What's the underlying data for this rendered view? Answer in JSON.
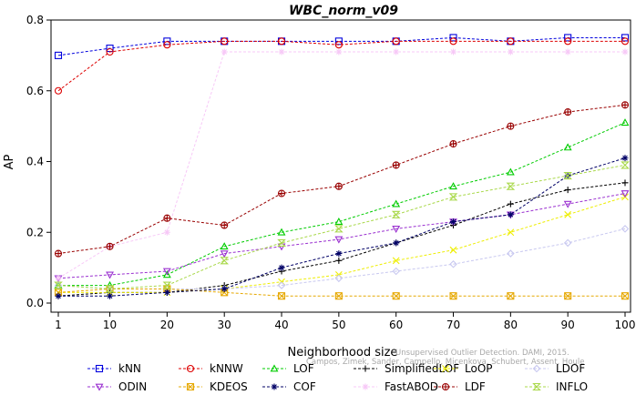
{
  "chart_data": {
    "type": "line",
    "title": "WBC_norm_v09",
    "xlabel": "Neighborhood size",
    "ylabel": "AP",
    "xlim": [
      1,
      100
    ],
    "ylim": [
      0,
      0.8
    ],
    "xticks": [
      1,
      10,
      20,
      30,
      40,
      50,
      60,
      70,
      80,
      90,
      100
    ],
    "yticks": [
      0.0,
      0.2,
      0.4,
      0.6,
      0.8
    ],
    "xtick_labels": [
      "1",
      "10",
      "20",
      "30",
      "40",
      "50",
      "60",
      "70",
      "80",
      "90",
      "100"
    ],
    "ytick_labels": [
      "0.0",
      "0.2",
      "0.4",
      "0.6",
      "0.8"
    ],
    "grid": false,
    "legend_position": "bottom",
    "watermark": "Campos, Zimek, Sander, Campello, Micenkova, Schubert, Assent, Houle",
    "watermark_line1": "Unsupervised Outlier Detection. DAMI, 2015.",
    "x": [
      1,
      10,
      20,
      30,
      40,
      50,
      60,
      70,
      80,
      90,
      100
    ],
    "series": [
      {
        "name": "kNN",
        "color": "#0000dd",
        "marker": "square",
        "values": [
          0.7,
          0.72,
          0.74,
          0.74,
          0.74,
          0.74,
          0.74,
          0.75,
          0.74,
          0.75,
          0.75
        ]
      },
      {
        "name": "kNNW",
        "color": "#dd0000",
        "marker": "circle",
        "values": [
          0.6,
          0.71,
          0.73,
          0.74,
          0.74,
          0.73,
          0.74,
          0.74,
          0.74,
          0.74,
          0.74
        ]
      },
      {
        "name": "LOF",
        "color": "#00cc00",
        "marker": "triangle-up",
        "values": [
          0.05,
          0.05,
          0.08,
          0.16,
          0.2,
          0.23,
          0.28,
          0.33,
          0.37,
          0.44,
          0.51
        ]
      },
      {
        "name": "SimplifiedLOF",
        "color": "#000000",
        "marker": "plus",
        "values": [
          0.02,
          0.03,
          0.03,
          0.05,
          0.09,
          0.12,
          0.17,
          0.22,
          0.28,
          0.32,
          0.34
        ]
      },
      {
        "name": "LoOP",
        "color": "#eeee00",
        "marker": "x",
        "values": [
          0.03,
          0.03,
          0.03,
          0.04,
          0.06,
          0.08,
          0.12,
          0.15,
          0.2,
          0.25,
          0.3
        ]
      },
      {
        "name": "LDOF",
        "color": "#c8c8f0",
        "marker": "diamond",
        "values": [
          0.05,
          0.04,
          0.04,
          0.04,
          0.05,
          0.07,
          0.09,
          0.11,
          0.14,
          0.17,
          0.21
        ]
      },
      {
        "name": "ODIN",
        "color": "#9a30d0",
        "marker": "triangle-down",
        "values": [
          0.07,
          0.08,
          0.09,
          0.14,
          0.16,
          0.18,
          0.21,
          0.23,
          0.25,
          0.28,
          0.31
        ]
      },
      {
        "name": "KDEOS",
        "color": "#e6a800",
        "marker": "square-x",
        "values": [
          0.03,
          0.04,
          0.04,
          0.03,
          0.02,
          0.02,
          0.02,
          0.02,
          0.02,
          0.02,
          0.02
        ]
      },
      {
        "name": "COF",
        "color": "#000066",
        "marker": "asterisk",
        "values": [
          0.02,
          0.02,
          0.03,
          0.04,
          0.1,
          0.14,
          0.17,
          0.23,
          0.25,
          0.36,
          0.41
        ]
      },
      {
        "name": "FastABOD",
        "color": "#f7c8f7",
        "marker": "star",
        "values": [
          0.07,
          0.16,
          0.2,
          0.71,
          0.71,
          0.71,
          0.71,
          0.71,
          0.71,
          0.71,
          0.71
        ]
      },
      {
        "name": "LDF",
        "color": "#990000",
        "marker": "circle-plus",
        "values": [
          0.14,
          0.16,
          0.24,
          0.22,
          0.31,
          0.33,
          0.39,
          0.45,
          0.5,
          0.54,
          0.56
        ]
      },
      {
        "name": "INFLO",
        "color": "#a8d848",
        "marker": "hourglass",
        "values": [
          0.05,
          0.04,
          0.05,
          0.12,
          0.17,
          0.21,
          0.25,
          0.3,
          0.33,
          0.36,
          0.39
        ]
      }
    ]
  }
}
